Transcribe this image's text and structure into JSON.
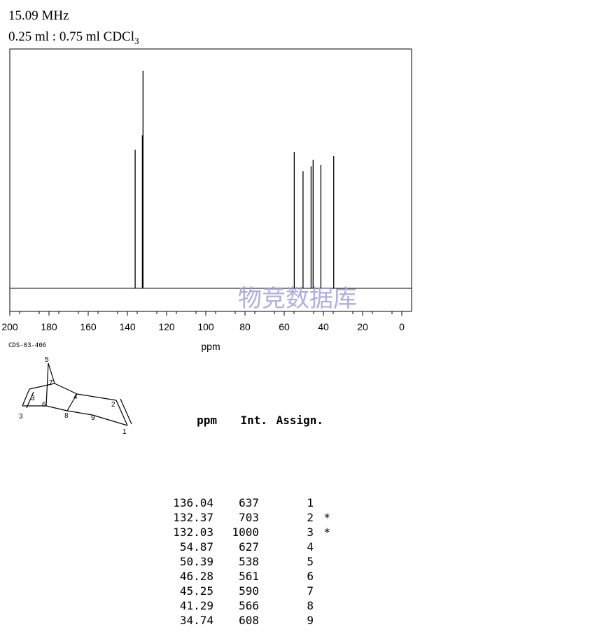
{
  "header": {
    "frequency": "15.09 MHz",
    "solvent_prefix": "0.25 ml : 0.75 ml CDCl",
    "solvent_sub": "3"
  },
  "watermark": "物竞数据库",
  "compound_code": "CDS-03-406",
  "table": {
    "headers": [
      "ppm",
      "Int.",
      "Assign."
    ],
    "rows": [
      {
        "ppm": "136.04",
        "int": "637",
        "assign": "1",
        "mark": ""
      },
      {
        "ppm": "132.37",
        "int": "703",
        "assign": "2",
        "mark": "*"
      },
      {
        "ppm": "132.03",
        "int": "1000",
        "assign": "3",
        "mark": "*"
      },
      {
        "ppm": "54.87",
        "int": "627",
        "assign": "4",
        "mark": ""
      },
      {
        "ppm": "50.39",
        "int": "538",
        "assign": "5",
        "mark": ""
      },
      {
        "ppm": "46.28",
        "int": "561",
        "assign": "6",
        "mark": ""
      },
      {
        "ppm": "45.25",
        "int": "590",
        "assign": "7",
        "mark": ""
      },
      {
        "ppm": "41.29",
        "int": "566",
        "assign": "8",
        "mark": ""
      },
      {
        "ppm": "34.74",
        "int": "608",
        "assign": "9",
        "mark": ""
      }
    ]
  },
  "structure_labels": [
    "1",
    "2",
    "3",
    "4",
    "5",
    "6",
    "7",
    "8",
    "9"
  ],
  "chart_data": {
    "type": "line",
    "xlabel": "ppm",
    "ylabel": "",
    "xlim": [
      200,
      0
    ],
    "x_ticks": [
      200,
      180,
      160,
      140,
      120,
      100,
      80,
      60,
      40,
      20,
      0
    ],
    "reversed_x": true,
    "peaks": [
      {
        "ppm": 136.04,
        "intensity": 637
      },
      {
        "ppm": 132.37,
        "intensity": 703
      },
      {
        "ppm": 132.03,
        "intensity": 1000
      },
      {
        "ppm": 54.87,
        "intensity": 627
      },
      {
        "ppm": 50.39,
        "intensity": 538
      },
      {
        "ppm": 46.28,
        "intensity": 561
      },
      {
        "ppm": 45.25,
        "intensity": 590
      },
      {
        "ppm": 41.29,
        "intensity": 566
      },
      {
        "ppm": 34.74,
        "intensity": 608
      }
    ]
  }
}
